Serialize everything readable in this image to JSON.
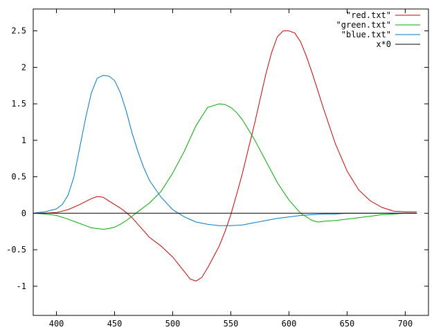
{
  "chart_data": {
    "type": "line",
    "title": "",
    "xlabel": "",
    "ylabel": "",
    "xlim": [
      380,
      720
    ],
    "ylim": [
      -1.4,
      2.8
    ],
    "grid": false,
    "legend_position": "top-right",
    "x_ticks": [
      400,
      450,
      500,
      550,
      600,
      650,
      700
    ],
    "y_ticks": [
      2.5,
      2,
      1.5,
      1,
      0.5,
      0,
      -0.5,
      -1
    ],
    "x_tick_labels": [
      "400",
      "450",
      "500",
      "550",
      "600",
      "650",
      "700"
    ],
    "y_tick_labels": [
      "2.5",
      "2",
      "1.5",
      "1",
      "0.5",
      "0",
      "-0.5",
      "-1"
    ],
    "series": [
      {
        "name": "\"red.txt\"",
        "color": "#cc0000",
        "x": [
          380,
          390,
          400,
          410,
          420,
          430,
          435,
          440,
          445,
          450,
          455,
          460,
          465,
          470,
          475,
          480,
          490,
          500,
          510,
          515,
          520,
          525,
          530,
          535,
          540,
          545,
          550,
          555,
          560,
          565,
          570,
          575,
          580,
          585,
          590,
          595,
          600,
          605,
          610,
          615,
          620,
          625,
          630,
          640,
          650,
          660,
          670,
          680,
          690,
          700,
          710
        ],
        "y": [
          0.0,
          0.0,
          0.01,
          0.05,
          0.12,
          0.2,
          0.23,
          0.22,
          0.17,
          0.12,
          0.07,
          0.01,
          -0.06,
          -0.15,
          -0.24,
          -0.33,
          -0.45,
          -0.6,
          -0.8,
          -0.9,
          -0.93,
          -0.88,
          -0.75,
          -0.6,
          -0.45,
          -0.25,
          -0.02,
          0.26,
          0.55,
          0.88,
          1.2,
          1.55,
          1.9,
          2.2,
          2.42,
          2.5,
          2.5,
          2.47,
          2.35,
          2.15,
          1.92,
          1.67,
          1.42,
          0.95,
          0.58,
          0.32,
          0.17,
          0.08,
          0.03,
          0.02,
          0.02
        ]
      },
      {
        "name": "\"green.txt\"",
        "color": "#00aa00",
        "x": [
          380,
          390,
          400,
          410,
          420,
          430,
          440,
          445,
          450,
          455,
          460,
          465,
          470,
          480,
          490,
          500,
          510,
          520,
          530,
          540,
          545,
          550,
          555,
          560,
          570,
          580,
          590,
          600,
          610,
          620,
          625,
          630,
          640,
          650,
          660,
          670,
          680,
          690,
          700,
          710
        ],
        "y": [
          0.0,
          -0.01,
          -0.03,
          -0.08,
          -0.14,
          -0.2,
          -0.22,
          -0.21,
          -0.19,
          -0.15,
          -0.1,
          -0.04,
          0.02,
          0.14,
          0.3,
          0.55,
          0.85,
          1.2,
          1.45,
          1.5,
          1.49,
          1.45,
          1.38,
          1.28,
          1.02,
          0.72,
          0.42,
          0.18,
          0.0,
          -0.1,
          -0.12,
          -0.11,
          -0.1,
          -0.08,
          -0.06,
          -0.04,
          -0.02,
          -0.01,
          0.0,
          0.0
        ]
      },
      {
        "name": "\"blue.txt\"",
        "color": "#0077cc",
        "x": [
          380,
          390,
          400,
          405,
          410,
          415,
          420,
          425,
          430,
          435,
          440,
          445,
          450,
          455,
          460,
          465,
          470,
          475,
          480,
          490,
          500,
          510,
          520,
          530,
          540,
          550,
          560,
          570,
          580,
          590,
          600,
          610,
          620,
          630,
          640,
          650,
          660,
          670,
          680,
          690,
          700,
          710
        ],
        "y": [
          0.0,
          0.02,
          0.06,
          0.12,
          0.25,
          0.5,
          0.9,
          1.3,
          1.65,
          1.85,
          1.89,
          1.88,
          1.82,
          1.65,
          1.4,
          1.1,
          0.85,
          0.63,
          0.45,
          0.22,
          0.05,
          -0.05,
          -0.12,
          -0.15,
          -0.17,
          -0.17,
          -0.16,
          -0.13,
          -0.1,
          -0.07,
          -0.05,
          -0.03,
          -0.02,
          -0.01,
          -0.01,
          0.0,
          0.0,
          0.0,
          0.0,
          0.0,
          0.0,
          0.0
        ]
      },
      {
        "name": "x*0",
        "color": "#000000",
        "x": [
          380,
          710
        ],
        "y": [
          0,
          0
        ]
      }
    ]
  }
}
